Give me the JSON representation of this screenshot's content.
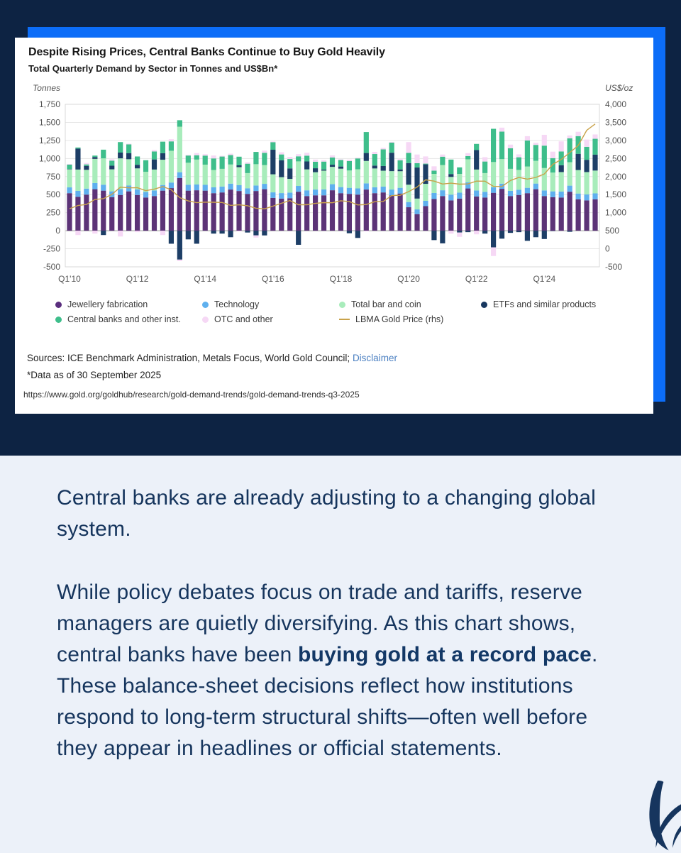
{
  "card": {
    "title": "Despite Rising Prices, Central Banks Continue to Buy Gold Heavily",
    "subtitle": "Total Quarterly Demand by Sector in Tonnes and US$Bn*",
    "sources_prefix": "Sources: ICE Benchmark Administration, Metals Focus, World Gold Council; ",
    "disclaimer_label": "Disclaimer",
    "data_note": "*Data as of 30 September 2025",
    "url": "https://www.gold.org/goldhub/research/gold-demand-trends/gold-demand-trends-q3-2025"
  },
  "chart_data": {
    "type": "bar",
    "title": "Despite Rising Prices, Central Banks Continue to Buy Gold Heavily",
    "subtitle": "Total Quarterly Demand by Sector in Tonnes and US$Bn*",
    "left_axis": {
      "label": "Tonnes",
      "min": -500,
      "max": 1750,
      "step": 250
    },
    "right_axis": {
      "label": "US$/oz",
      "min": -500,
      "max": 4000,
      "step": 500
    },
    "x_tick_labels": [
      "Q1'10",
      "Q1'12",
      "Q1'14",
      "Q1'16",
      "Q1'18",
      "Q1'20",
      "Q1'22",
      "Q1'24"
    ],
    "x_tick_indices": [
      0,
      8,
      16,
      24,
      32,
      40,
      48,
      56
    ],
    "grid": true,
    "legend_position": "bottom",
    "series": [
      {
        "name": "Jewellery fabrication",
        "color": "#5C3377",
        "values": [
          520,
          470,
          500,
          575,
          555,
          465,
          495,
          545,
          495,
          460,
          480,
          555,
          590,
          730,
          555,
          560,
          555,
          520,
          530,
          570,
          550,
          510,
          550,
          575,
          455,
          445,
          450,
          540,
          480,
          490,
          490,
          560,
          520,
          510,
          500,
          570,
          520,
          530,
          490,
          515,
          325,
          230,
          340,
          440,
          480,
          420,
          445,
          585,
          475,
          460,
          525,
          580,
          480,
          495,
          520,
          575,
          480,
          465,
          460,
          540,
          435,
          420,
          435
        ]
      },
      {
        "name": "Technology",
        "color": "#5FB0EE",
        "values": [
          80,
          82,
          83,
          85,
          82,
          80,
          82,
          80,
          78,
          76,
          77,
          78,
          77,
          80,
          81,
          80,
          80,
          81,
          82,
          82,
          80,
          78,
          76,
          74,
          76,
          76,
          78,
          80,
          79,
          80,
          82,
          84,
          84,
          84,
          86,
          86,
          82,
          81,
          80,
          79,
          72,
          65,
          74,
          82,
          80,
          80,
          82,
          84,
          82,
          78,
          76,
          72,
          72,
          72,
          74,
          78,
          78,
          80,
          82,
          84,
          80,
          82,
          82
        ]
      },
      {
        "name": "Total bar and coin",
        "color": "#A8ECBB",
        "values": [
          250,
          295,
          260,
          335,
          365,
          305,
          425,
          365,
          290,
          280,
          290,
          350,
          440,
          630,
          305,
          345,
          280,
          240,
          245,
          265,
          250,
          210,
          295,
          260,
          250,
          220,
          190,
          340,
          290,
          240,
          260,
          240,
          255,
          240,
          265,
          310,
          260,
          220,
          255,
          230,
          240,
          150,
          235,
          265,
          350,
          245,
          260,
          320,
          290,
          260,
          350,
          340,
          305,
          275,
          295,
          315,
          310,
          260,
          270,
          325,
          325,
          310,
          316
        ]
      },
      {
        "name": "ETFs and similar products",
        "color": "#1D3E66",
        "values": [
          5,
          290,
          55,
          25,
          -60,
          50,
          80,
          85,
          50,
          0,
          140,
          90,
          -180,
          -400,
          -120,
          -180,
          0,
          -40,
          -40,
          -90,
          25,
          -25,
          -65,
          -65,
          340,
          235,
          145,
          -195,
          110,
          55,
          15,
          30,
          30,
          -35,
          -100,
          110,
          40,
          65,
          255,
          25,
          300,
          430,
          270,
          -130,
          -175,
          40,
          -25,
          -20,
          270,
          -40,
          -230,
          -110,
          -30,
          -20,
          -140,
          -90,
          -115,
          -5,
          95,
          -15,
          225,
          170,
          220
        ]
      },
      {
        "name": "Central banks and other inst.",
        "color": "#3EBE8B",
        "values": [
          60,
          15,
          20,
          20,
          120,
          70,
          145,
          120,
          115,
          160,
          110,
          160,
          130,
          90,
          100,
          60,
          125,
          160,
          170,
          130,
          120,
          130,
          170,
          170,
          105,
          80,
          130,
          70,
          80,
          90,
          110,
          100,
          90,
          130,
          150,
          290,
          160,
          230,
          140,
          125,
          140,
          60,
          10,
          45,
          115,
          200,
          90,
          45,
          85,
          160,
          460,
          380,
          285,
          175,
          360,
          220,
          310,
          200,
          190,
          330,
          245,
          180,
          220
        ]
      },
      {
        "name": "OTC and other",
        "color": "#F6D8F5",
        "values": [
          10,
          -60,
          20,
          -40,
          0,
          20,
          -80,
          10,
          -20,
          0,
          20,
          -60,
          30,
          -20,
          10,
          30,
          20,
          40,
          10,
          20,
          -10,
          20,
          -30,
          30,
          10,
          30,
          30,
          30,
          40,
          30,
          20,
          30,
          10,
          20,
          10,
          -10,
          30,
          20,
          10,
          20,
          150,
          120,
          100,
          60,
          30,
          -40,
          -60,
          40,
          -50,
          60,
          -120,
          55,
          50,
          40,
          60,
          30,
          150,
          90,
          140,
          40,
          60,
          100,
          60
        ]
      }
    ],
    "line_series": {
      "name": "LBMA Gold Price (rhs)",
      "color": "#C9A24A",
      "values": [
        1110,
        1197,
        1227,
        1367,
        1386,
        1506,
        1706,
        1688,
        1691,
        1609,
        1652,
        1722,
        1632,
        1415,
        1326,
        1276,
        1293,
        1288,
        1282,
        1201,
        1218,
        1192,
        1124,
        1106,
        1181,
        1260,
        1335,
        1220,
        1219,
        1257,
        1278,
        1275,
        1329,
        1306,
        1213,
        1226,
        1304,
        1309,
        1472,
        1481,
        1583,
        1711,
        1909,
        1874,
        1794,
        1816,
        1790,
        1795,
        1874,
        1871,
        1729,
        1725,
        1890,
        1976,
        1928,
        1976,
        2070,
        2338,
        2474,
        2664,
        2860,
        3280,
        3456
      ]
    },
    "legend_rows": [
      [
        {
          "label": "Jewellery fabrication",
          "marker": "dot",
          "color": "#5A2E7E"
        },
        {
          "label": "Technology",
          "marker": "dot",
          "color": "#5FB0EE"
        },
        {
          "label": "Total bar and coin",
          "marker": "dot",
          "color": "#A8ECBB"
        },
        {
          "label": "ETFs and similar products",
          "marker": "dot",
          "color": "#17375F"
        }
      ],
      [
        {
          "label": "Central banks and other inst.",
          "marker": "dot",
          "color": "#3EBE8B"
        },
        {
          "label": "OTC and other",
          "marker": "dot",
          "color": "#F6D8F5"
        },
        {
          "label": "LBMA Gold Price (rhs)",
          "marker": "line",
          "color": "#C9A24A"
        }
      ]
    ]
  },
  "body": {
    "p1": "Central banks are already adjusting to a changing global system.",
    "p2_before": "While policy debates focus on trade and tariffs, reserve managers are quietly diversifying. As this chart shows, central banks have been ",
    "p2_bold": "buying gold at a record pace",
    "p2_after": ". These balance-sheet decisions reflect how institutions respond to long-term structural shifts—often well before they appear in headlines or official statements."
  },
  "colors": {
    "hero_background": "#0D2343",
    "accent_blue": "#0C6DF8",
    "card_background": "#FFFFFF",
    "page_background": "#ECF1F9",
    "body_text": "#16355D",
    "link_blue": "#4A7FC1",
    "logo_navy": "#16355E"
  }
}
